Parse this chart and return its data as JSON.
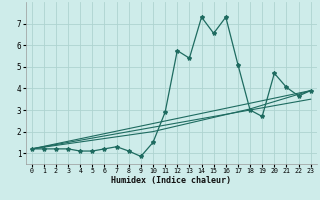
{
  "xlabel": "Humidex (Indice chaleur)",
  "background_color": "#ceecea",
  "grid_color": "#aed4d0",
  "line_color": "#1e6b60",
  "xlim": [
    -0.5,
    23.5
  ],
  "ylim": [
    0.5,
    8.0
  ],
  "xticks": [
    0,
    1,
    2,
    3,
    4,
    5,
    6,
    7,
    8,
    9,
    10,
    11,
    12,
    13,
    14,
    15,
    16,
    17,
    18,
    19,
    20,
    21,
    22,
    23
  ],
  "yticks": [
    1,
    2,
    3,
    4,
    5,
    6,
    7
  ],
  "main_x": [
    0,
    1,
    2,
    3,
    4,
    5,
    6,
    7,
    8,
    9,
    10,
    11,
    12,
    13,
    14,
    15,
    16,
    17,
    18,
    19,
    20,
    21,
    22,
    23
  ],
  "main_y": [
    1.2,
    1.2,
    1.2,
    1.2,
    1.1,
    1.1,
    1.2,
    1.3,
    1.1,
    0.85,
    1.5,
    2.9,
    5.75,
    5.4,
    7.3,
    6.55,
    7.3,
    5.1,
    3.0,
    2.7,
    4.7,
    4.05,
    3.65,
    3.9
  ],
  "line2_x": [
    0,
    23
  ],
  "line2_y": [
    1.2,
    3.5
  ],
  "line3_x": [
    0,
    23
  ],
  "line3_y": [
    1.2,
    3.9
  ],
  "line4_x": [
    0,
    10,
    18,
    23
  ],
  "line4_y": [
    1.2,
    2.0,
    3.05,
    3.9
  ]
}
